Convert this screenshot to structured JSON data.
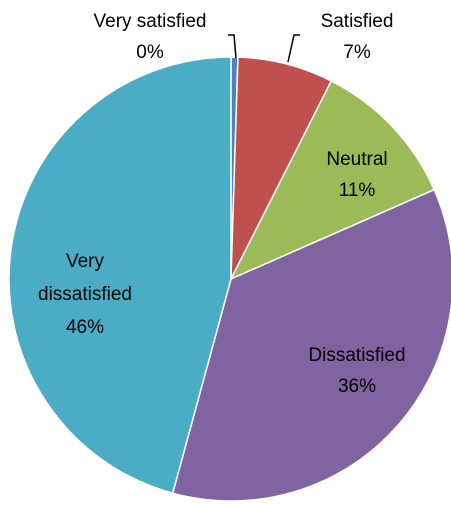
{
  "chart_data": {
    "type": "pie",
    "title": "",
    "legend": "none",
    "slices": [
      {
        "label": "Very satisfied",
        "value": 0.5,
        "display": "0%",
        "color": "#4F81BD"
      },
      {
        "label": "Satisfied",
        "value": 7,
        "display": "7%",
        "color": "#C0504D"
      },
      {
        "label": "Neutral",
        "value": 11,
        "display": "11%",
        "color": "#9BBB59"
      },
      {
        "label": "Dissatisfied",
        "value": 36,
        "display": "36%",
        "color": "#8064A2"
      },
      {
        "label": "Very dissatisfied",
        "value": 46,
        "display": "46%",
        "color": "#4BACC6"
      }
    ]
  }
}
